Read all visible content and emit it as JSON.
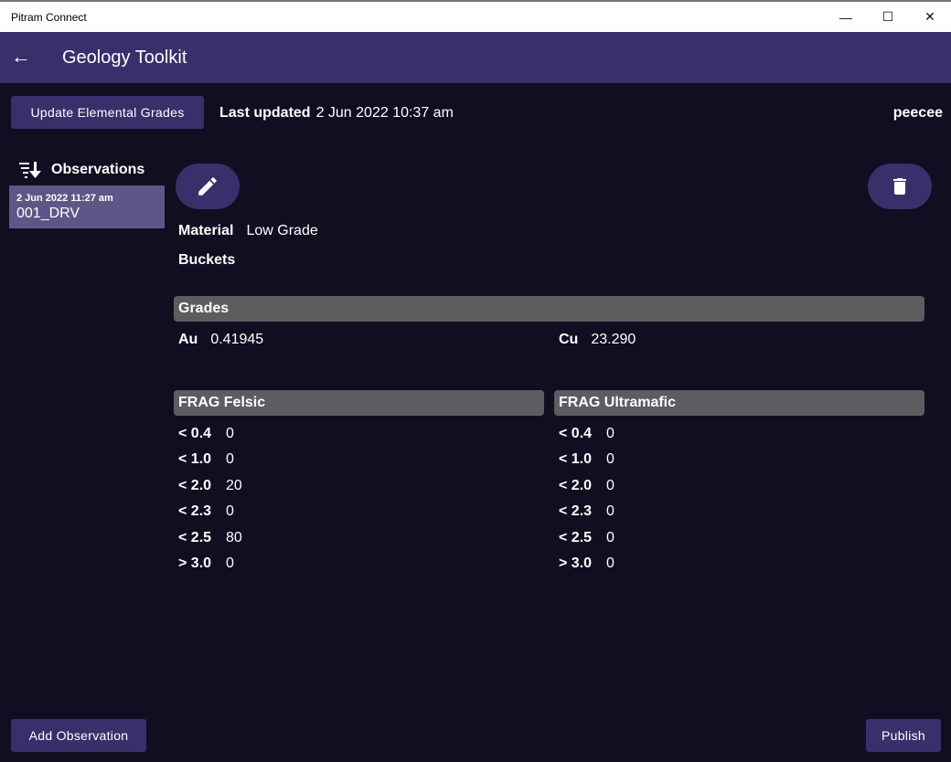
{
  "window": {
    "title": "Pitram Connect"
  },
  "appbar": {
    "title": "Geology Toolkit"
  },
  "toolbar": {
    "update_label": "Update Elemental Grades",
    "last_updated_label": "Last updated",
    "last_updated_value": "2 Jun 2022 10:37 am",
    "user": "peecee"
  },
  "sidebar": {
    "heading": "Observations",
    "items": [
      {
        "date": "2 Jun 2022 11:27 am",
        "name": "001_DRV"
      }
    ],
    "add_label": "Add Observation"
  },
  "detail": {
    "material_label": "Material",
    "material_value": "Low Grade",
    "buckets_label": "Buckets",
    "grades": {
      "title": "Grades",
      "items": [
        {
          "label": "Au",
          "value": "0.41945"
        },
        {
          "label": "Cu",
          "value": "23.290"
        }
      ]
    },
    "frag": [
      {
        "title": "FRAG Felsic",
        "rows": [
          {
            "k": "< 0.4",
            "v": "0"
          },
          {
            "k": "< 1.0",
            "v": "0"
          },
          {
            "k": "< 2.0",
            "v": "20"
          },
          {
            "k": "< 2.3",
            "v": "0"
          },
          {
            "k": "< 2.5",
            "v": "80"
          },
          {
            "k": "> 3.0",
            "v": "0"
          }
        ]
      },
      {
        "title": "FRAG Ultramafic",
        "rows": [
          {
            "k": "< 0.4",
            "v": "0"
          },
          {
            "k": "< 1.0",
            "v": "0"
          },
          {
            "k": "< 2.0",
            "v": "0"
          },
          {
            "k": "< 2.3",
            "v": "0"
          },
          {
            "k": "< 2.5",
            "v": "0"
          },
          {
            "k": "> 3.0",
            "v": "0"
          }
        ]
      }
    ]
  },
  "footer": {
    "publish_label": "Publish"
  }
}
